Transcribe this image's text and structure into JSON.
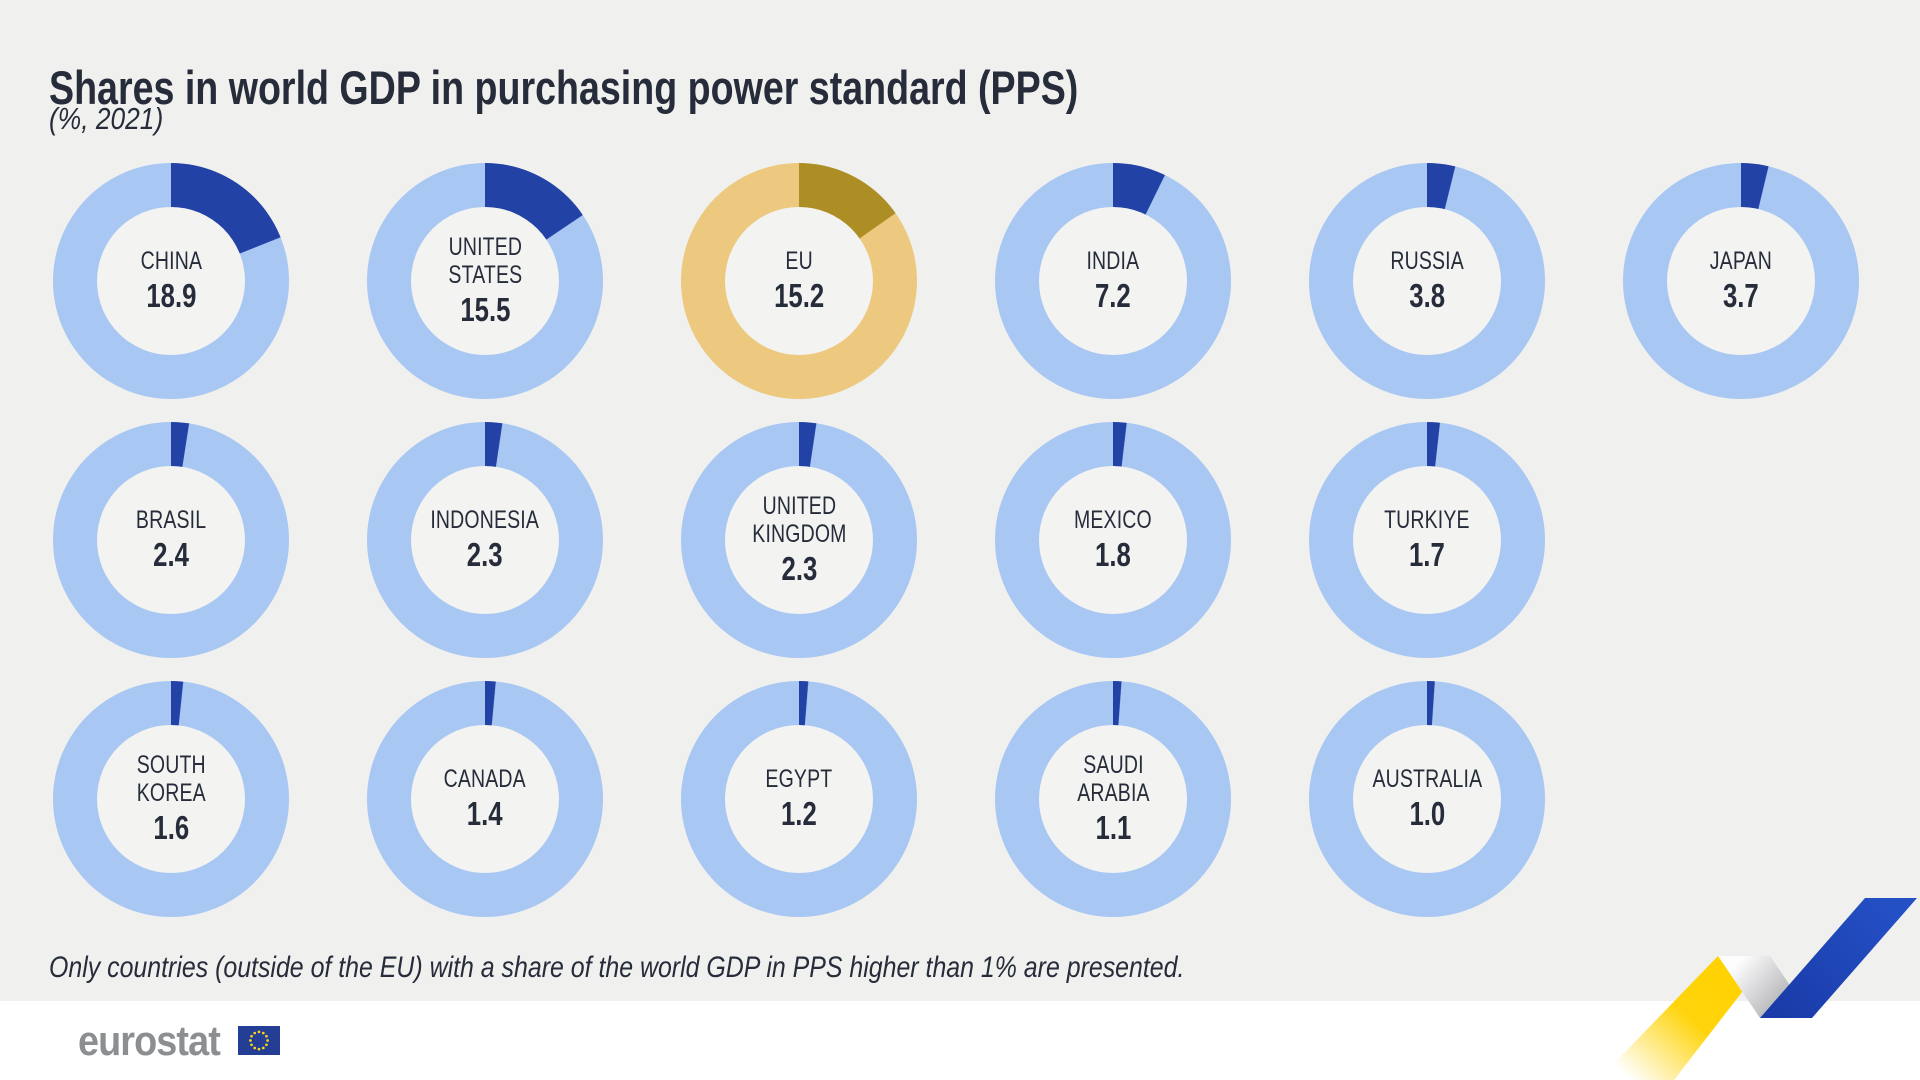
{
  "header": {
    "title": "Shares in world GDP in purchasing power standard (PPS)",
    "subtitle": "(%, 2021)"
  },
  "footnote": "Only countries (outside of the EU) with a share of the world GDP in PPS higher than 1% are presented.",
  "footer": {
    "logo_text": "eurostat"
  },
  "colors": {
    "background": "#f0f0ee",
    "band": "#ffffff",
    "hole": "#f3f3f1",
    "text": "#262c3a",
    "ring_blue": "#a9c7f3",
    "segment_blue": "#2342a6",
    "ring_gold": "#edc980",
    "segment_gold": "#ad8e25",
    "logo_gray": "#8b8f92",
    "flag_blue": "#233e94",
    "star_yellow": "#ffd617",
    "ribbon_yellow": "#ffd200",
    "ribbon_blue_light": "#2450c6",
    "ribbon_blue_dark": "#1a3ba8",
    "ribbon_gray": "#9b9ca1"
  },
  "chart_data": {
    "type": "pie",
    "subtype": "donut-multiples",
    "title": "Shares in world GDP in purchasing power standard (PPS)",
    "unit": "% of world GDP in PPS",
    "year": "2021",
    "legend_position": "none",
    "donuts": [
      {
        "label": "CHINA",
        "value": 18.9,
        "display": "18.9",
        "theme": "blue"
      },
      {
        "label": "UNITED\nSTATES",
        "value": 15.5,
        "display": "15.5",
        "theme": "blue"
      },
      {
        "label": "EU",
        "value": 15.2,
        "display": "15.2",
        "theme": "gold"
      },
      {
        "label": "INDIA",
        "value": 7.2,
        "display": "7.2",
        "theme": "blue"
      },
      {
        "label": "RUSSIA",
        "value": 3.8,
        "display": "3.8",
        "theme": "blue"
      },
      {
        "label": "JAPAN",
        "value": 3.7,
        "display": "3.7",
        "theme": "blue"
      },
      {
        "label": "BRASIL",
        "value": 2.4,
        "display": "2.4",
        "theme": "blue"
      },
      {
        "label": "INDONESIA",
        "value": 2.3,
        "display": "2.3",
        "theme": "blue"
      },
      {
        "label": "UNITED\nKINGDOM",
        "value": 2.3,
        "display": "2.3",
        "theme": "blue"
      },
      {
        "label": "MEXICO",
        "value": 1.8,
        "display": "1.8",
        "theme": "blue"
      },
      {
        "label": "TURKIYE",
        "value": 1.7,
        "display": "1.7",
        "theme": "blue"
      },
      {
        "label": "SOUTH\nKOREA",
        "value": 1.6,
        "display": "1.6",
        "theme": "blue"
      },
      {
        "label": "CANADA",
        "value": 1.4,
        "display": "1.4",
        "theme": "blue"
      },
      {
        "label": "EGYPT",
        "value": 1.2,
        "display": "1.2",
        "theme": "blue"
      },
      {
        "label": "SAUDI\nARABIA",
        "value": 1.1,
        "display": "1.1",
        "theme": "blue"
      },
      {
        "label": "AUSTRALIA",
        "value": 1.0,
        "display": "1.0",
        "theme": "blue"
      }
    ]
  }
}
